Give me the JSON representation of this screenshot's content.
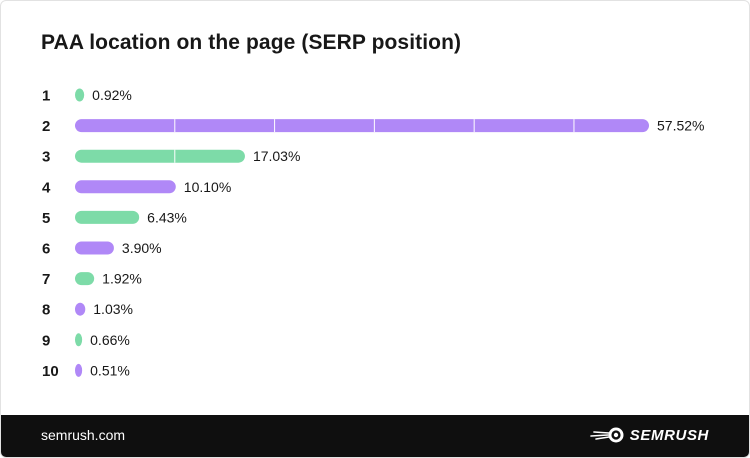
{
  "chart_data": {
    "type": "bar",
    "orientation": "horizontal",
    "title": "PAA location on the page (SERP position)",
    "categories": [
      "1",
      "2",
      "3",
      "4",
      "5",
      "6",
      "7",
      "8",
      "9",
      "10"
    ],
    "values": [
      0.92,
      57.52,
      17.03,
      10.1,
      6.43,
      3.9,
      1.92,
      1.03,
      0.66,
      0.51
    ],
    "value_labels": [
      "0.92%",
      "57.52%",
      "17.03%",
      "10.10%",
      "6.43%",
      "3.90%",
      "1.92%",
      "1.03%",
      "0.66%",
      "0.51%"
    ],
    "colors": [
      "#7ddba8",
      "#b088f7",
      "#7ddba8",
      "#b088f7",
      "#7ddba8",
      "#b088f7",
      "#7ddba8",
      "#b088f7",
      "#7ddba8",
      "#b088f7"
    ],
    "xlim": [
      0,
      57.52
    ],
    "grid": true
  },
  "footer": {
    "url": "semrush.com",
    "brand": "SEMRUSH",
    "brand_icon": "semrush-fireball-icon"
  }
}
